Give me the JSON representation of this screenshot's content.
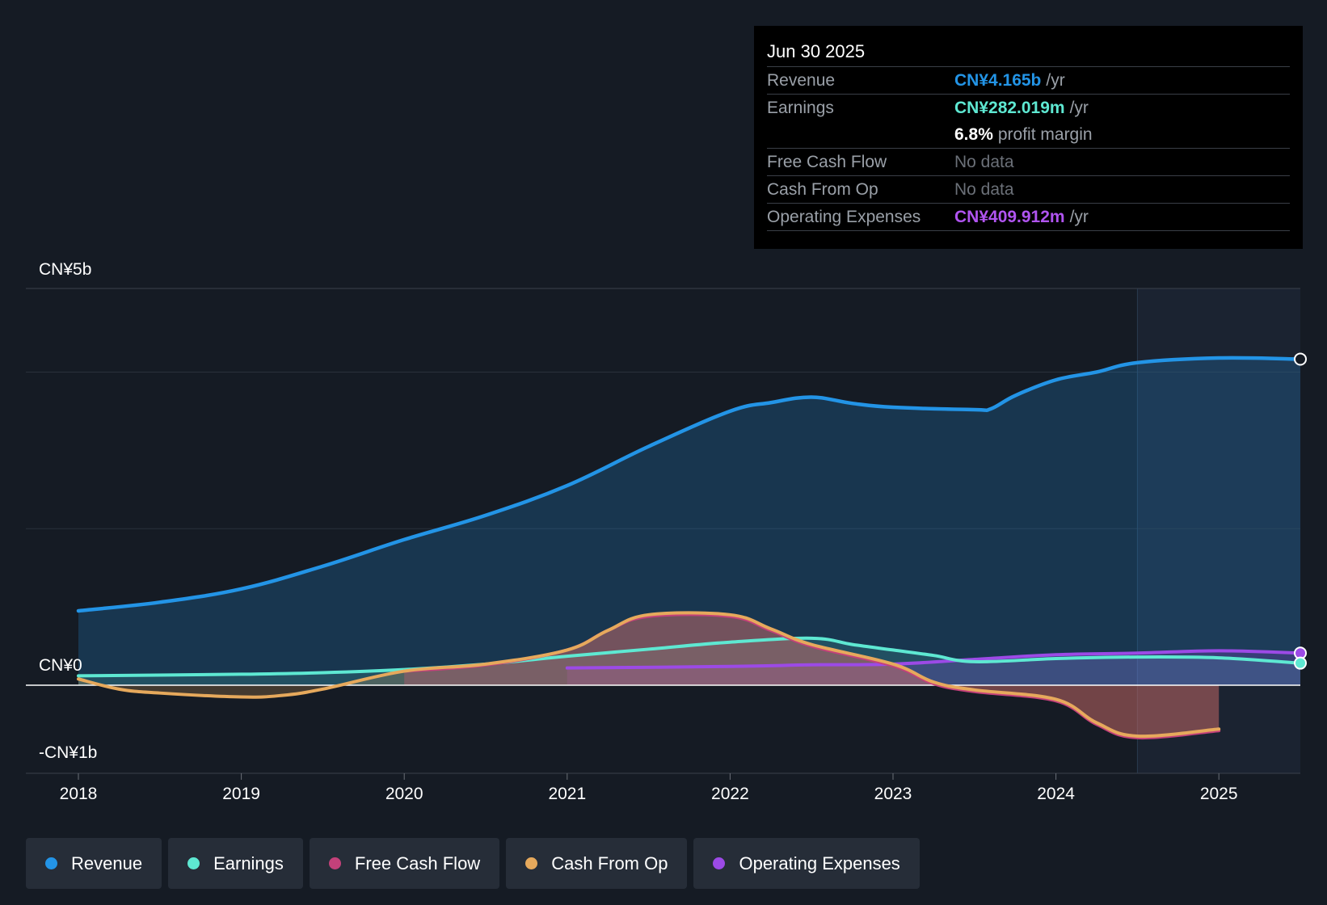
{
  "chart_data": {
    "type": "area",
    "y_axis": {
      "min": -1,
      "max": 5,
      "unit": "CN¥b",
      "tick_labels": [
        {
          "label": "CN¥5b",
          "value": 5
        },
        {
          "label": "CN¥0",
          "value": 0
        },
        {
          "label": "-CN¥1b",
          "value": -1
        }
      ]
    },
    "x_axis": {
      "min": 2018,
      "max": 2025.5,
      "ticks": [
        "2018",
        "2019",
        "2020",
        "2021",
        "2022",
        "2023",
        "2024",
        "2025"
      ]
    },
    "past_divider_x": 2024.5,
    "series": [
      {
        "key": "revenue",
        "name": "Revenue",
        "color": "#2394e6",
        "points": [
          [
            2018,
            0.95
          ],
          [
            2018.5,
            1.06
          ],
          [
            2019,
            1.23
          ],
          [
            2019.5,
            1.52
          ],
          [
            2020,
            1.86
          ],
          [
            2020.5,
            2.17
          ],
          [
            2021,
            2.55
          ],
          [
            2021.5,
            3.05
          ],
          [
            2022,
            3.5
          ],
          [
            2022.25,
            3.61
          ],
          [
            2022.5,
            3.68
          ],
          [
            2022.75,
            3.6
          ],
          [
            2023,
            3.55
          ],
          [
            2023.5,
            3.52
          ],
          [
            2023.6,
            3.53
          ],
          [
            2023.75,
            3.7
          ],
          [
            2024,
            3.9
          ],
          [
            2024.25,
            4.0
          ],
          [
            2024.5,
            4.12
          ],
          [
            2025,
            4.18
          ],
          [
            2025.5,
            4.165
          ]
        ]
      },
      {
        "key": "earnings",
        "name": "Earnings",
        "color": "#5ee8d2",
        "points": [
          [
            2018,
            0.12
          ],
          [
            2019,
            0.14
          ],
          [
            2019.5,
            0.16
          ],
          [
            2020,
            0.2
          ],
          [
            2020.5,
            0.27
          ],
          [
            2021,
            0.37
          ],
          [
            2021.5,
            0.46
          ],
          [
            2022,
            0.55
          ],
          [
            2022.5,
            0.6
          ],
          [
            2022.75,
            0.52
          ],
          [
            2023,
            0.45
          ],
          [
            2023.25,
            0.38
          ],
          [
            2023.5,
            0.3
          ],
          [
            2024,
            0.34
          ],
          [
            2024.5,
            0.36
          ],
          [
            2025,
            0.35
          ],
          [
            2025.5,
            0.282
          ]
        ]
      },
      {
        "key": "fcf",
        "name": "Free Cash Flow",
        "color": "#c4417a",
        "points": [
          [
            2020,
            0.18
          ],
          [
            2020.5,
            0.26
          ],
          [
            2021,
            0.45
          ],
          [
            2021.25,
            0.7
          ],
          [
            2021.5,
            0.88
          ],
          [
            2022,
            0.88
          ],
          [
            2022.25,
            0.7
          ],
          [
            2022.5,
            0.5
          ],
          [
            2023,
            0.25
          ],
          [
            2023.25,
            0.02
          ],
          [
            2023.5,
            -0.08
          ],
          [
            2024,
            -0.2
          ],
          [
            2024.25,
            -0.5
          ],
          [
            2024.5,
            -0.67
          ],
          [
            2025,
            -0.58
          ]
        ]
      },
      {
        "key": "cfo",
        "name": "Cash From Op",
        "color": "#e6a95c",
        "points": [
          [
            2018,
            0.08
          ],
          [
            2018.25,
            -0.05
          ],
          [
            2018.5,
            -0.1
          ],
          [
            2019,
            -0.15
          ],
          [
            2019.25,
            -0.13
          ],
          [
            2019.5,
            -0.05
          ],
          [
            2020,
            0.18
          ],
          [
            2020.5,
            0.27
          ],
          [
            2021,
            0.45
          ],
          [
            2021.25,
            0.7
          ],
          [
            2021.5,
            0.9
          ],
          [
            2022,
            0.9
          ],
          [
            2022.25,
            0.72
          ],
          [
            2022.5,
            0.52
          ],
          [
            2023,
            0.27
          ],
          [
            2023.25,
            0.04
          ],
          [
            2023.5,
            -0.06
          ],
          [
            2024,
            -0.18
          ],
          [
            2024.25,
            -0.48
          ],
          [
            2024.5,
            -0.65
          ],
          [
            2025,
            -0.56
          ]
        ]
      },
      {
        "key": "opex",
        "name": "Operating Expenses",
        "color": "#9c4ae6",
        "points": [
          [
            2021,
            0.22
          ],
          [
            2022,
            0.24
          ],
          [
            2022.5,
            0.26
          ],
          [
            2023,
            0.27
          ],
          [
            2023.5,
            0.33
          ],
          [
            2024,
            0.39
          ],
          [
            2024.5,
            0.41
          ],
          [
            2025,
            0.44
          ],
          [
            2025.5,
            0.41
          ]
        ]
      }
    ]
  },
  "tooltip": {
    "date": "Jun 30 2025",
    "revenue": {
      "label": "Revenue",
      "value": "CN¥4.165b",
      "unit": "/yr",
      "color": "#2394e6"
    },
    "earnings": {
      "label": "Earnings",
      "value": "CN¥282.019m",
      "unit": "/yr",
      "color": "#5ee8d2"
    },
    "margin": {
      "value": "6.8%",
      "text": "profit margin"
    },
    "fcf": {
      "label": "Free Cash Flow",
      "value": "No data"
    },
    "cfo": {
      "label": "Cash From Op",
      "value": "No data"
    },
    "opex": {
      "label": "Operating Expenses",
      "value": "CN¥409.912m",
      "unit": "/yr",
      "color": "#b054f0"
    }
  },
  "legend": [
    {
      "label": "Revenue",
      "color": "#2394e6"
    },
    {
      "label": "Earnings",
      "color": "#5ee8d2"
    },
    {
      "label": "Free Cash Flow",
      "color": "#c4417a"
    },
    {
      "label": "Cash From Op",
      "color": "#e6a95c"
    },
    {
      "label": "Operating Expenses",
      "color": "#9c4ae6"
    }
  ]
}
